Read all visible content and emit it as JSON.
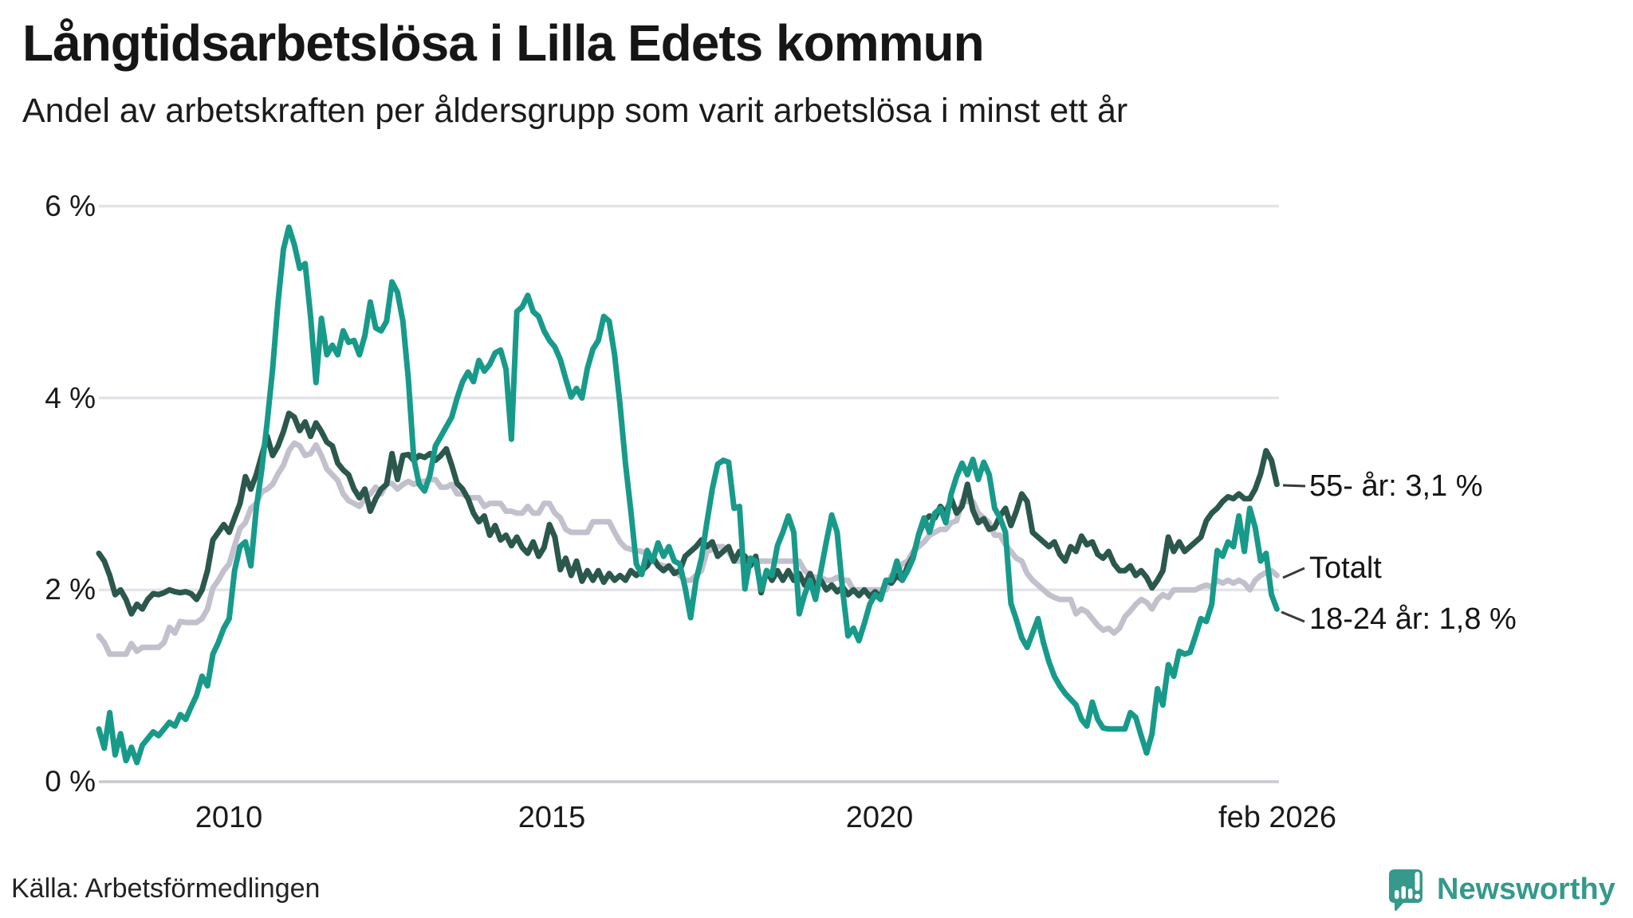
{
  "title": "Långtidsarbetslösa i Lilla Edets kommun",
  "subtitle": "Andel av arbetskraften per åldersgrupp som varit arbetslösa i minst ett år",
  "source": "Källa: Arbetsförmedlingen",
  "logo": {
    "text": "Newsworthy",
    "icon": "bar-chart-speech-bubble-icon",
    "color": "#35998b"
  },
  "axes": {
    "y": [
      "6 %",
      "4 %",
      "2 %",
      "0 %"
    ],
    "x": [
      "2010",
      "2015",
      "2020",
      "feb 2026"
    ]
  },
  "annotations": {
    "age55": "55- år: 3,1 %",
    "total": "Totalt",
    "age1824": "18-24 år: 1,8 %"
  },
  "colors": {
    "teal": "#189a8a",
    "dark": "#2b574c",
    "gray": "#c2c0cc",
    "grid": "#e4e4e8",
    "zero_axis": "#c9c9cd",
    "connector": "#3a3a3a",
    "brand": "#35998b"
  },
  "chart_data": {
    "type": "line",
    "title": "Långtidsarbetslösa i Lilla Edets kommun",
    "subtitle": "Andel av arbetskraften per åldersgrupp som varit arbetslösa i minst ett år",
    "unit": "%",
    "ylim": [
      0,
      6
    ],
    "y_ticks": [
      0,
      2,
      4,
      6
    ],
    "y_tick_labels": [
      "0 %",
      "2 %",
      "4 %",
      "6 %"
    ],
    "x_tick_labels": [
      "2010",
      "2015",
      "2020",
      "feb 2026"
    ],
    "x_start": "2008-01",
    "x_end": "2026-02",
    "x_step": "1 month",
    "grid": "horizontal-only",
    "legend_position": "end-of-line-labels-right",
    "series": [
      {
        "name": "Totalt",
        "end_label": "Totalt",
        "end_value": 2.2,
        "color": "#c2c0cc",
        "values": [
          1.52,
          1.45,
          1.33,
          1.33,
          1.33,
          1.33,
          1.44,
          1.36,
          1.4,
          1.4,
          1.4,
          1.4,
          1.45,
          1.61,
          1.55,
          1.67,
          1.66,
          1.66,
          1.66,
          1.7,
          1.8,
          2.02,
          2.1,
          2.2,
          2.27,
          2.46,
          2.64,
          2.7,
          2.85,
          2.9,
          3.02,
          3.05,
          3.1,
          3.21,
          3.3,
          3.45,
          3.53,
          3.5,
          3.4,
          3.42,
          3.51,
          3.4,
          3.26,
          3.2,
          3.14,
          3.0,
          2.93,
          2.9,
          2.87,
          2.95,
          3.0,
          3.07,
          3.0,
          3.11,
          3.11,
          3.05,
          3.1,
          3.13,
          3.1,
          3.13,
          3.13,
          3.15,
          3.15,
          3.07,
          3.07,
          3.1,
          3.0,
          3.0,
          2.96,
          2.96,
          2.96,
          2.87,
          2.9,
          2.9,
          2.9,
          2.82,
          2.82,
          2.8,
          2.8,
          2.87,
          2.8,
          2.8,
          2.9,
          2.9,
          2.8,
          2.75,
          2.63,
          2.6,
          2.6,
          2.6,
          2.6,
          2.71,
          2.71,
          2.71,
          2.71,
          2.6,
          2.5,
          2.44,
          2.42,
          2.41,
          2.4,
          2.37,
          2.3,
          2.27,
          2.25,
          2.24,
          2.2,
          2.15,
          2.1,
          2.1,
          2.15,
          2.2,
          2.4,
          2.42,
          2.45,
          2.45,
          2.4,
          2.3,
          2.3,
          2.3,
          2.3,
          2.3,
          2.3,
          2.3,
          2.3,
          2.3,
          2.3,
          2.3,
          2.3,
          2.3,
          2.2,
          2.15,
          2.13,
          2.13,
          2.1,
          2.1,
          2.13,
          2.1,
          2.1,
          2.0,
          2.0,
          2.0,
          2.0,
          2.0,
          2.0,
          2.0,
          2.15,
          2.2,
          2.27,
          2.3,
          2.4,
          2.45,
          2.5,
          2.57,
          2.6,
          2.63,
          2.63,
          2.7,
          2.72,
          2.92,
          2.92,
          2.92,
          2.8,
          2.75,
          2.7,
          2.57,
          2.57,
          2.47,
          2.4,
          2.33,
          2.3,
          2.17,
          2.1,
          2.05,
          2.0,
          1.95,
          1.92,
          1.9,
          1.9,
          1.9,
          1.75,
          1.8,
          1.77,
          1.7,
          1.63,
          1.58,
          1.6,
          1.55,
          1.6,
          1.72,
          1.78,
          1.85,
          1.9,
          1.87,
          1.8,
          1.9,
          1.95,
          1.92,
          2.0,
          2.0,
          2.0,
          2.0,
          2.0,
          2.03,
          2.05,
          2.03,
          2.1,
          2.07,
          2.1,
          2.07,
          2.1,
          2.07,
          2.0,
          2.1,
          2.15,
          2.18,
          2.2,
          2.15
        ]
      },
      {
        "name": "55- år",
        "end_label": "55- år: 3,1 %",
        "end_value": 3.1,
        "color": "#2b574c",
        "values": [
          2.38,
          2.3,
          2.15,
          1.95,
          2.0,
          1.9,
          1.75,
          1.85,
          1.8,
          1.9,
          1.96,
          1.95,
          1.97,
          2.0,
          1.98,
          1.97,
          1.98,
          1.96,
          1.9,
          2.0,
          2.2,
          2.52,
          2.6,
          2.68,
          2.6,
          2.75,
          2.9,
          3.18,
          3.05,
          3.2,
          3.4,
          3.6,
          3.4,
          3.5,
          3.65,
          3.84,
          3.8,
          3.66,
          3.75,
          3.6,
          3.74,
          3.65,
          3.54,
          3.5,
          3.32,
          3.25,
          3.2,
          3.05,
          2.96,
          3.05,
          2.82,
          2.95,
          3.05,
          3.1,
          3.42,
          3.15,
          3.4,
          3.41,
          3.35,
          3.4,
          3.38,
          3.42,
          3.35,
          3.4,
          3.47,
          3.3,
          3.11,
          3.05,
          2.95,
          2.8,
          2.71,
          2.77,
          2.57,
          2.67,
          2.52,
          2.57,
          2.46,
          2.55,
          2.44,
          2.38,
          2.5,
          2.35,
          2.44,
          2.68,
          2.55,
          2.21,
          2.33,
          2.15,
          2.3,
          2.09,
          2.2,
          2.1,
          2.2,
          2.08,
          2.17,
          2.1,
          2.15,
          2.1,
          2.2,
          2.15,
          2.2,
          2.25,
          2.35,
          2.25,
          2.2,
          2.25,
          2.17,
          2.2,
          2.35,
          2.4,
          2.45,
          2.52,
          2.45,
          2.5,
          2.35,
          2.4,
          2.45,
          2.3,
          2.4,
          2.35,
          2.25,
          2.35,
          1.97,
          2.2,
          2.1,
          2.2,
          2.1,
          2.2,
          2.1,
          2.17,
          2.05,
          2.17,
          2.03,
          2.1,
          2.0,
          2.05,
          1.98,
          2.03,
          1.95,
          2.0,
          1.94,
          2.0,
          1.93,
          1.98,
          1.92,
          2.1,
          2.07,
          2.15,
          2.1,
          2.25,
          2.35,
          2.57,
          2.72,
          2.77,
          2.75,
          2.87,
          2.8,
          2.95,
          2.8,
          2.87,
          3.1,
          2.83,
          2.7,
          2.74,
          2.63,
          2.65,
          2.77,
          2.85,
          2.67,
          2.82,
          3.0,
          2.92,
          2.6,
          2.55,
          2.5,
          2.45,
          2.5,
          2.37,
          2.3,
          2.45,
          2.4,
          2.56,
          2.47,
          2.5,
          2.37,
          2.33,
          2.4,
          2.27,
          2.2,
          2.2,
          2.25,
          2.15,
          2.2,
          2.13,
          2.02,
          2.1,
          2.2,
          2.55,
          2.4,
          2.5,
          2.4,
          2.45,
          2.5,
          2.55,
          2.72,
          2.8,
          2.85,
          2.92,
          2.97,
          2.95,
          3.0,
          2.95,
          2.95,
          3.05,
          3.21,
          3.45,
          3.35,
          3.1
        ]
      },
      {
        "name": "18-24 år",
        "end_label": "18-24 år: 1,8 %",
        "end_value": 1.8,
        "color": "#189a8a",
        "values": [
          0.55,
          0.35,
          0.72,
          0.28,
          0.5,
          0.22,
          0.36,
          0.2,
          0.38,
          0.45,
          0.52,
          0.48,
          0.55,
          0.62,
          0.58,
          0.7,
          0.65,
          0.78,
          0.9,
          1.1,
          1.0,
          1.33,
          1.45,
          1.6,
          1.7,
          2.2,
          2.45,
          2.5,
          2.25,
          2.85,
          3.25,
          3.75,
          4.3,
          5.0,
          5.55,
          5.78,
          5.6,
          5.35,
          5.4,
          4.85,
          4.16,
          4.83,
          4.45,
          4.55,
          4.45,
          4.7,
          4.58,
          4.6,
          4.45,
          4.65,
          5.0,
          4.73,
          4.7,
          4.8,
          5.21,
          5.1,
          4.8,
          4.2,
          3.37,
          3.1,
          3.03,
          3.2,
          3.5,
          3.6,
          3.7,
          3.8,
          4.0,
          4.17,
          4.27,
          4.17,
          4.39,
          4.28,
          4.35,
          4.47,
          4.5,
          4.3,
          3.57,
          4.9,
          4.95,
          5.07,
          4.9,
          4.85,
          4.7,
          4.6,
          4.53,
          4.4,
          4.2,
          4.01,
          4.1,
          4.0,
          4.31,
          4.51,
          4.6,
          4.85,
          4.8,
          4.45,
          3.93,
          3.32,
          2.82,
          2.27,
          2.16,
          2.41,
          2.3,
          2.49,
          2.35,
          2.45,
          2.3,
          2.27,
          2.02,
          1.71,
          2.1,
          2.33,
          2.7,
          3.05,
          3.31,
          3.35,
          3.33,
          2.85,
          2.87,
          2.01,
          2.33,
          2.3,
          2.0,
          2.2,
          2.15,
          2.46,
          2.6,
          2.77,
          2.6,
          1.75,
          1.95,
          2.1,
          1.9,
          2.2,
          2.5,
          2.78,
          2.6,
          2.0,
          1.52,
          1.6,
          1.47,
          1.65,
          1.85,
          1.95,
          1.9,
          2.1,
          2.1,
          2.3,
          2.1,
          2.2,
          2.33,
          2.58,
          2.75,
          2.6,
          2.8,
          2.85,
          2.7,
          3.0,
          3.18,
          3.32,
          3.2,
          3.36,
          3.15,
          3.33,
          3.2,
          2.85,
          2.75,
          2.6,
          1.86,
          1.69,
          1.5,
          1.4,
          1.55,
          1.7,
          1.45,
          1.25,
          1.1,
          1.0,
          0.92,
          0.86,
          0.8,
          0.65,
          0.58,
          0.83,
          0.65,
          0.56,
          0.55,
          0.55,
          0.55,
          0.55,
          0.72,
          0.67,
          0.48,
          0.3,
          0.5,
          0.97,
          0.8,
          1.22,
          1.1,
          1.36,
          1.33,
          1.35,
          1.52,
          1.7,
          1.67,
          1.85,
          2.41,
          2.35,
          2.5,
          2.45,
          2.77,
          2.4,
          2.85,
          2.65,
          2.3,
          2.38,
          1.95,
          1.8
        ]
      }
    ]
  }
}
